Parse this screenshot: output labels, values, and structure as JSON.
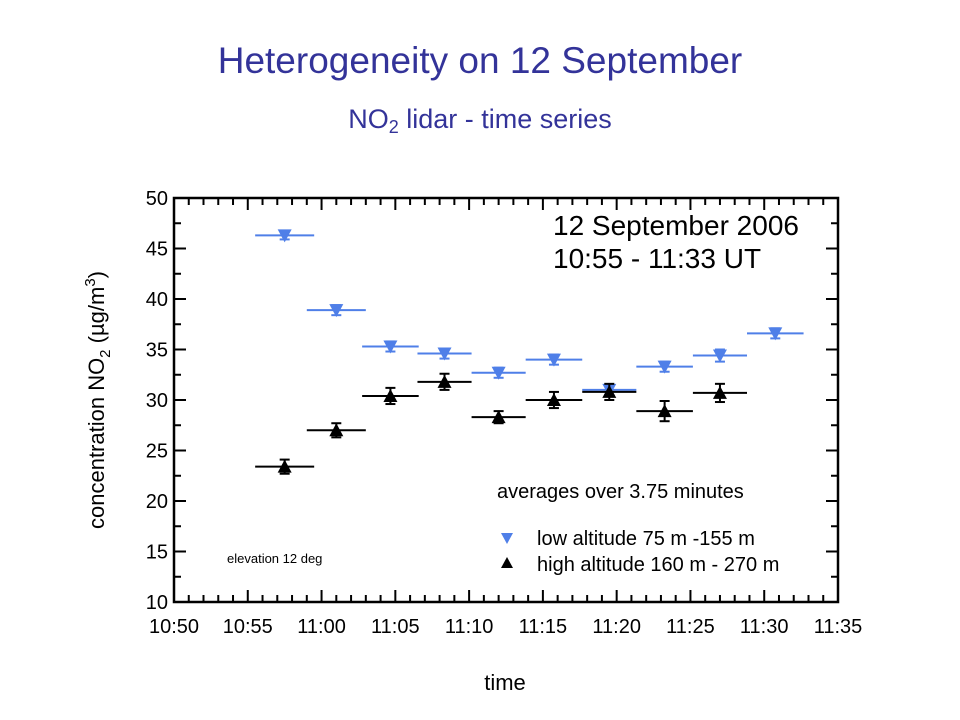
{
  "slide": {
    "title": "Heterogeneity on 12 September",
    "subtitle_prefix": "NO",
    "subtitle_sub": "2",
    "subtitle_suffix": " lidar - time series"
  },
  "chart_data": {
    "type": "scatter",
    "xlabel": "time",
    "ylabel_parts": {
      "pre": "concentration NO",
      "sub": "2",
      "mid": " (µg/m",
      "sup": "3",
      "post": ")"
    },
    "x_ticks": [
      "10:50",
      "10:55",
      "11:00",
      "11:05",
      "11:10",
      "11:15",
      "11:20",
      "11:25",
      "11:30",
      "11:35"
    ],
    "xlim": [
      "10:50",
      "11:35"
    ],
    "ylim": [
      10,
      50
    ],
    "y_ticks": [
      10,
      15,
      20,
      25,
      30,
      35,
      40,
      45,
      50
    ],
    "grid": false,
    "annotations": {
      "date_line1": "12 September 2006",
      "date_line2": "10:55 - 11:33 UT",
      "averages": "averages over 3.75 minutes",
      "elevation": "elevation 12 deg"
    },
    "legend_position": "bottom-right",
    "series": [
      {
        "name": "low altitude 75 m -155 m",
        "marker": "triangle-down",
        "color": "#4f7fe8",
        "points": [
          {
            "x": "10:57:30",
            "y": 46.3,
            "err": 0.4,
            "xmin": "10:55:30",
            "xmax": "10:59:30"
          },
          {
            "x": "11:01:00",
            "y": 38.9,
            "err": 0.5,
            "xmin": "10:59:00",
            "xmax": "11:03:00"
          },
          {
            "x": "11:04:40",
            "y": 35.3,
            "err": 0.5,
            "xmin": "11:02:45",
            "xmax": "11:06:35"
          },
          {
            "x": "11:08:20",
            "y": 34.6,
            "err": 0.5,
            "xmin": "11:06:30",
            "xmax": "11:10:10"
          },
          {
            "x": "11:12:00",
            "y": 32.7,
            "err": 0.5,
            "xmin": "11:10:10",
            "xmax": "11:13:50"
          },
          {
            "x": "11:15:45",
            "y": 34.0,
            "err": 0.5,
            "xmin": "11:13:50",
            "xmax": "11:17:40"
          },
          {
            "x": "11:19:30",
            "y": 31.0,
            "err": 0.5,
            "xmin": "11:17:40",
            "xmax": "11:21:20"
          },
          {
            "x": "11:23:15",
            "y": 33.3,
            "err": 0.5,
            "xmin": "11:21:20",
            "xmax": "11:25:10"
          },
          {
            "x": "11:27:00",
            "y": 34.4,
            "err": 0.6,
            "xmin": "11:25:10",
            "xmax": "11:28:50"
          },
          {
            "x": "11:30:45",
            "y": 36.6,
            "err": 0.5,
            "xmin": "11:28:50",
            "xmax": "11:32:40"
          }
        ]
      },
      {
        "name": "high altitude 160 m - 270 m",
        "marker": "triangle-up",
        "color": "#000000",
        "points": [
          {
            "x": "10:57:30",
            "y": 23.4,
            "err": 0.7,
            "xmin": "10:55:30",
            "xmax": "10:59:30"
          },
          {
            "x": "11:01:00",
            "y": 27.0,
            "err": 0.7,
            "xmin": "10:59:00",
            "xmax": "11:03:00"
          },
          {
            "x": "11:04:40",
            "y": 30.4,
            "err": 0.8,
            "xmin": "11:02:45",
            "xmax": "11:06:35"
          },
          {
            "x": "11:08:20",
            "y": 31.8,
            "err": 0.8,
            "xmin": "11:06:30",
            "xmax": "11:10:10"
          },
          {
            "x": "11:12:00",
            "y": 28.3,
            "err": 0.6,
            "xmin": "11:10:10",
            "xmax": "11:13:50"
          },
          {
            "x": "11:15:45",
            "y": 30.0,
            "err": 0.8,
            "xmin": "11:13:50",
            "xmax": "11:17:40"
          },
          {
            "x": "11:19:30",
            "y": 30.8,
            "err": 0.8,
            "xmin": "11:17:40",
            "xmax": "11:21:20"
          },
          {
            "x": "11:23:15",
            "y": 28.9,
            "err": 1.0,
            "xmin": "11:21:20",
            "xmax": "11:25:10"
          },
          {
            "x": "11:27:00",
            "y": 30.7,
            "err": 0.9,
            "xmin": "11:25:10",
            "xmax": "11:28:50"
          }
        ]
      }
    ]
  }
}
